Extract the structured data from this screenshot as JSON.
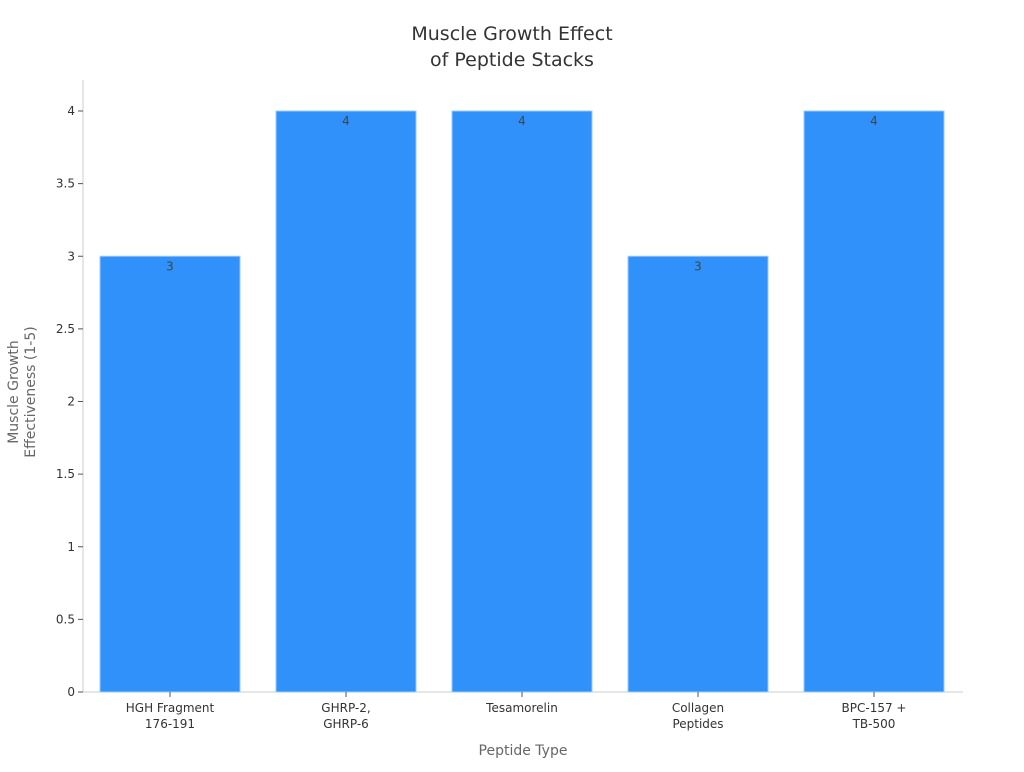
{
  "chart_data": {
    "type": "bar",
    "title_lines": [
      "Muscle Growth Effect",
      "of Peptide Stacks"
    ],
    "xlabel": "Peptide Type",
    "ylabel_lines": [
      "Muscle Growth",
      "Effectiveness (1-5)"
    ],
    "categories": [
      [
        "HGH Fragment",
        "176-191"
      ],
      [
        "GHRP-2,",
        "GHRP-6"
      ],
      [
        "Tesamorelin"
      ],
      [
        "Collagen",
        "Peptides"
      ],
      [
        "BPC-157 +",
        "TB-500"
      ]
    ],
    "values": [
      3,
      4,
      4,
      3,
      4
    ],
    "data_labels": [
      "3",
      "4",
      "4",
      "3",
      "4"
    ],
    "yticks": [
      0,
      0.5,
      1,
      1.5,
      2,
      2.5,
      3,
      3.5,
      4
    ],
    "ytick_labels": [
      "0",
      "0.5",
      "1",
      "1.5",
      "2",
      "2.5",
      "3",
      "3.5",
      "4"
    ],
    "ylim": [
      0,
      4.2
    ],
    "grid": false,
    "bar_color": "#2f91f9",
    "axis_color": "#cccccc"
  }
}
